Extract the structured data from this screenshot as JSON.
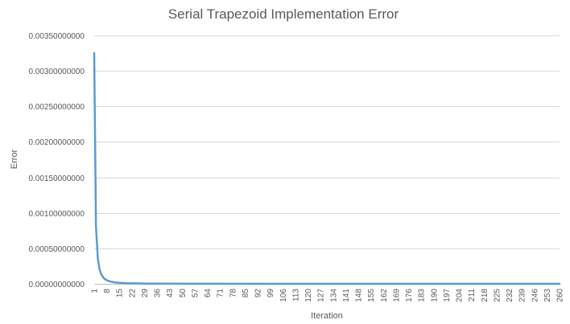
{
  "chart_data": {
    "type": "line",
    "title": "Serial Trapezoid Implementation Error",
    "xlabel": "Iteration",
    "ylabel": "Error",
    "ylim": [
      0,
      0.0035
    ],
    "y_ticks": [
      "0.00000000000",
      "0.00050000000",
      "0.00100000000",
      "0.00150000000",
      "0.00200000000",
      "0.00250000000",
      "0.00300000000",
      "0.00350000000"
    ],
    "x_ticks": [
      "1",
      "8",
      "15",
      "22",
      "29",
      "36",
      "43",
      "50",
      "57",
      "64",
      "71",
      "78",
      "85",
      "92",
      "99",
      "106",
      "113",
      "120",
      "127",
      "134",
      "141",
      "148",
      "155",
      "162",
      "169",
      "176",
      "183",
      "190",
      "197",
      "204",
      "211",
      "218",
      "225",
      "232",
      "239",
      "246",
      "253",
      "260"
    ],
    "xlim": [
      1,
      260
    ],
    "grid": true,
    "legend": "none",
    "series": [
      {
        "name": "",
        "color": "#5b9bd5",
        "x": [
          1,
          2,
          3,
          4,
          5,
          6,
          7,
          8,
          9,
          10,
          11,
          12,
          13,
          14,
          15,
          16,
          17,
          18,
          19,
          20,
          22,
          25,
          29,
          35,
          50,
          100,
          150,
          200,
          260
        ],
        "y": [
          0.00325,
          0.00081,
          0.00036,
          0.0002,
          0.00013,
          9e-05,
          6.6e-05,
          5.1e-05,
          4e-05,
          3.2e-05,
          2.7e-05,
          2.3e-05,
          1.9e-05,
          1.7e-05,
          1.4e-05,
          1.3e-05,
          1.1e-05,
          1e-05,
          9e-06,
          8e-06,
          6.7e-06,
          5.2e-06,
          3.9e-06,
          2.7e-06,
          1.3e-06,
          3e-07,
          1.5e-07,
          8e-08,
          5e-08
        ]
      }
    ]
  }
}
